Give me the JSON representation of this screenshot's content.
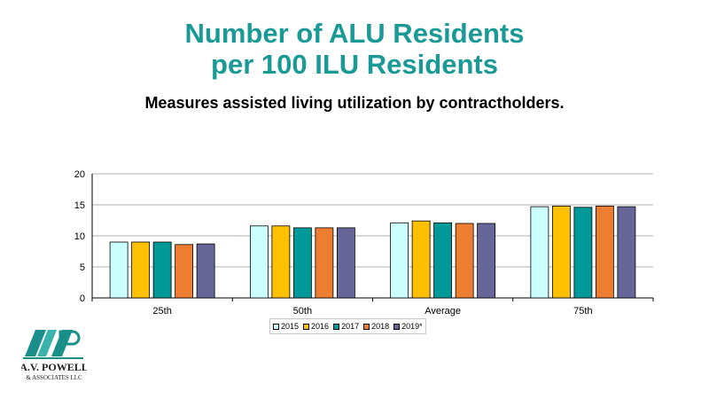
{
  "header": {
    "title_line1": "Number of ALU Residents",
    "title_line2": "per 100 ILU Residents",
    "subtitle": "Measures assisted living utilization by contractholders."
  },
  "colors": {
    "title": "#1a9a96",
    "series": [
      "#ccffff",
      "#ffc000",
      "#009999",
      "#ed7d31",
      "#666699"
    ]
  },
  "logo": {
    "line1": "A.V. POWELL",
    "line2": "& ASSOCIATES LLC",
    "mark": "AVP"
  },
  "chart_data": {
    "type": "bar",
    "categories": [
      "25th",
      "50th",
      "Average",
      "75th"
    ],
    "series": [
      {
        "name": "2015",
        "values": [
          9.0,
          11.6,
          12.1,
          14.7
        ]
      },
      {
        "name": "2016",
        "values": [
          9.0,
          11.6,
          12.4,
          14.8
        ]
      },
      {
        "name": "2017",
        "values": [
          9.0,
          11.3,
          12.1,
          14.6
        ]
      },
      {
        "name": "2018",
        "values": [
          8.6,
          11.3,
          12.0,
          14.8
        ]
      },
      {
        "name": "2019*",
        "values": [
          8.7,
          11.3,
          12.0,
          14.7
        ]
      }
    ],
    "yticks": [
      "0",
      "5",
      "10",
      "15",
      "20"
    ],
    "ylim": [
      0,
      20
    ],
    "grid": true,
    "legend_position": "bottom"
  }
}
